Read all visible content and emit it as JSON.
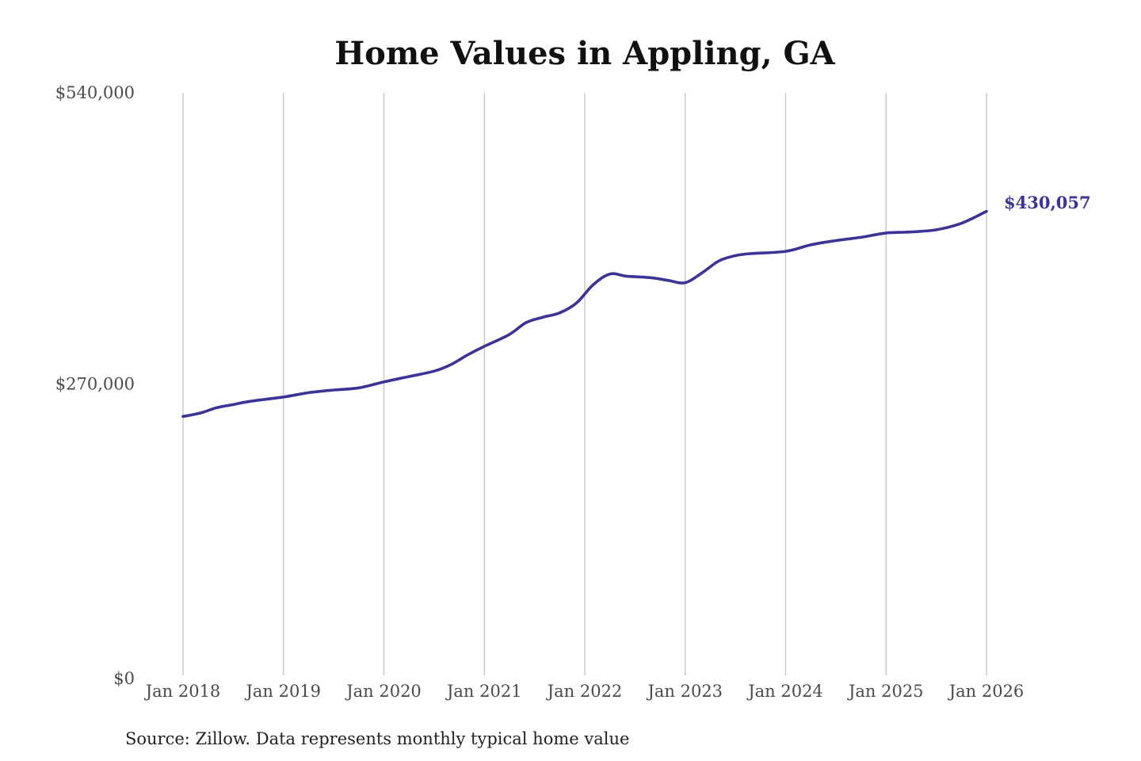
{
  "chart_data": {
    "type": "line",
    "title": "Home Values in Appling, GA",
    "xlabel": "",
    "ylabel": "",
    "ylim": [
      0,
      540000
    ],
    "y_ticks": [
      {
        "value": 0,
        "label": "$0"
      },
      {
        "value": 270000,
        "label": "$270,000"
      },
      {
        "value": 540000,
        "label": "$540,000"
      }
    ],
    "x_ticks": [
      {
        "value": 2018,
        "label": "Jan 2018"
      },
      {
        "value": 2019,
        "label": "Jan 2019"
      },
      {
        "value": 2020,
        "label": "Jan 2020"
      },
      {
        "value": 2021,
        "label": "Jan 2021"
      },
      {
        "value": 2022,
        "label": "Jan 2022"
      },
      {
        "value": 2023,
        "label": "Jan 2023"
      },
      {
        "value": 2024,
        "label": "Jan 2024"
      },
      {
        "value": 2025,
        "label": "Jan 2025"
      },
      {
        "value": 2026,
        "label": "Jan 2026"
      }
    ],
    "grid": {
      "vertical": true,
      "horizontal": false
    },
    "legend": "none",
    "series": [
      {
        "color": "#3b3494",
        "points": [
          {
            "date": "2018-01",
            "value": 240000
          },
          {
            "date": "2018-03",
            "value": 243000
          },
          {
            "date": "2018-05",
            "value": 248000
          },
          {
            "date": "2018-07",
            "value": 251000
          },
          {
            "date": "2018-09",
            "value": 254000
          },
          {
            "date": "2019-01",
            "value": 258000
          },
          {
            "date": "2019-04",
            "value": 262000
          },
          {
            "date": "2019-07",
            "value": 264500
          },
          {
            "date": "2019-10",
            "value": 266500
          },
          {
            "date": "2020-01",
            "value": 272000
          },
          {
            "date": "2020-04",
            "value": 277000
          },
          {
            "date": "2020-07",
            "value": 282000
          },
          {
            "date": "2020-09",
            "value": 288000
          },
          {
            "date": "2020-11",
            "value": 297000
          },
          {
            "date": "2021-01",
            "value": 305000
          },
          {
            "date": "2021-04",
            "value": 316000
          },
          {
            "date": "2021-06",
            "value": 327000
          },
          {
            "date": "2021-08",
            "value": 332000
          },
          {
            "date": "2021-10",
            "value": 336000
          },
          {
            "date": "2021-12",
            "value": 345000
          },
          {
            "date": "2022-02",
            "value": 362000
          },
          {
            "date": "2022-04",
            "value": 372000
          },
          {
            "date": "2022-06",
            "value": 370000
          },
          {
            "date": "2022-09",
            "value": 368500
          },
          {
            "date": "2022-11",
            "value": 366000
          },
          {
            "date": "2023-01",
            "value": 364000
          },
          {
            "date": "2023-03",
            "value": 373000
          },
          {
            "date": "2023-05",
            "value": 384000
          },
          {
            "date": "2023-07",
            "value": 389000
          },
          {
            "date": "2023-09",
            "value": 391000
          },
          {
            "date": "2024-01",
            "value": 393000
          },
          {
            "date": "2024-04",
            "value": 399000
          },
          {
            "date": "2024-07",
            "value": 403000
          },
          {
            "date": "2024-10",
            "value": 406000
          },
          {
            "date": "2025-01",
            "value": 410000
          },
          {
            "date": "2025-04",
            "value": 411000
          },
          {
            "date": "2025-07",
            "value": 413000
          },
          {
            "date": "2025-10",
            "value": 419000
          },
          {
            "date": "2026-01",
            "value": 430057
          }
        ]
      }
    ],
    "end_label": "$430,057",
    "source": "Source: Zillow. Data represents monthly typical home value"
  }
}
